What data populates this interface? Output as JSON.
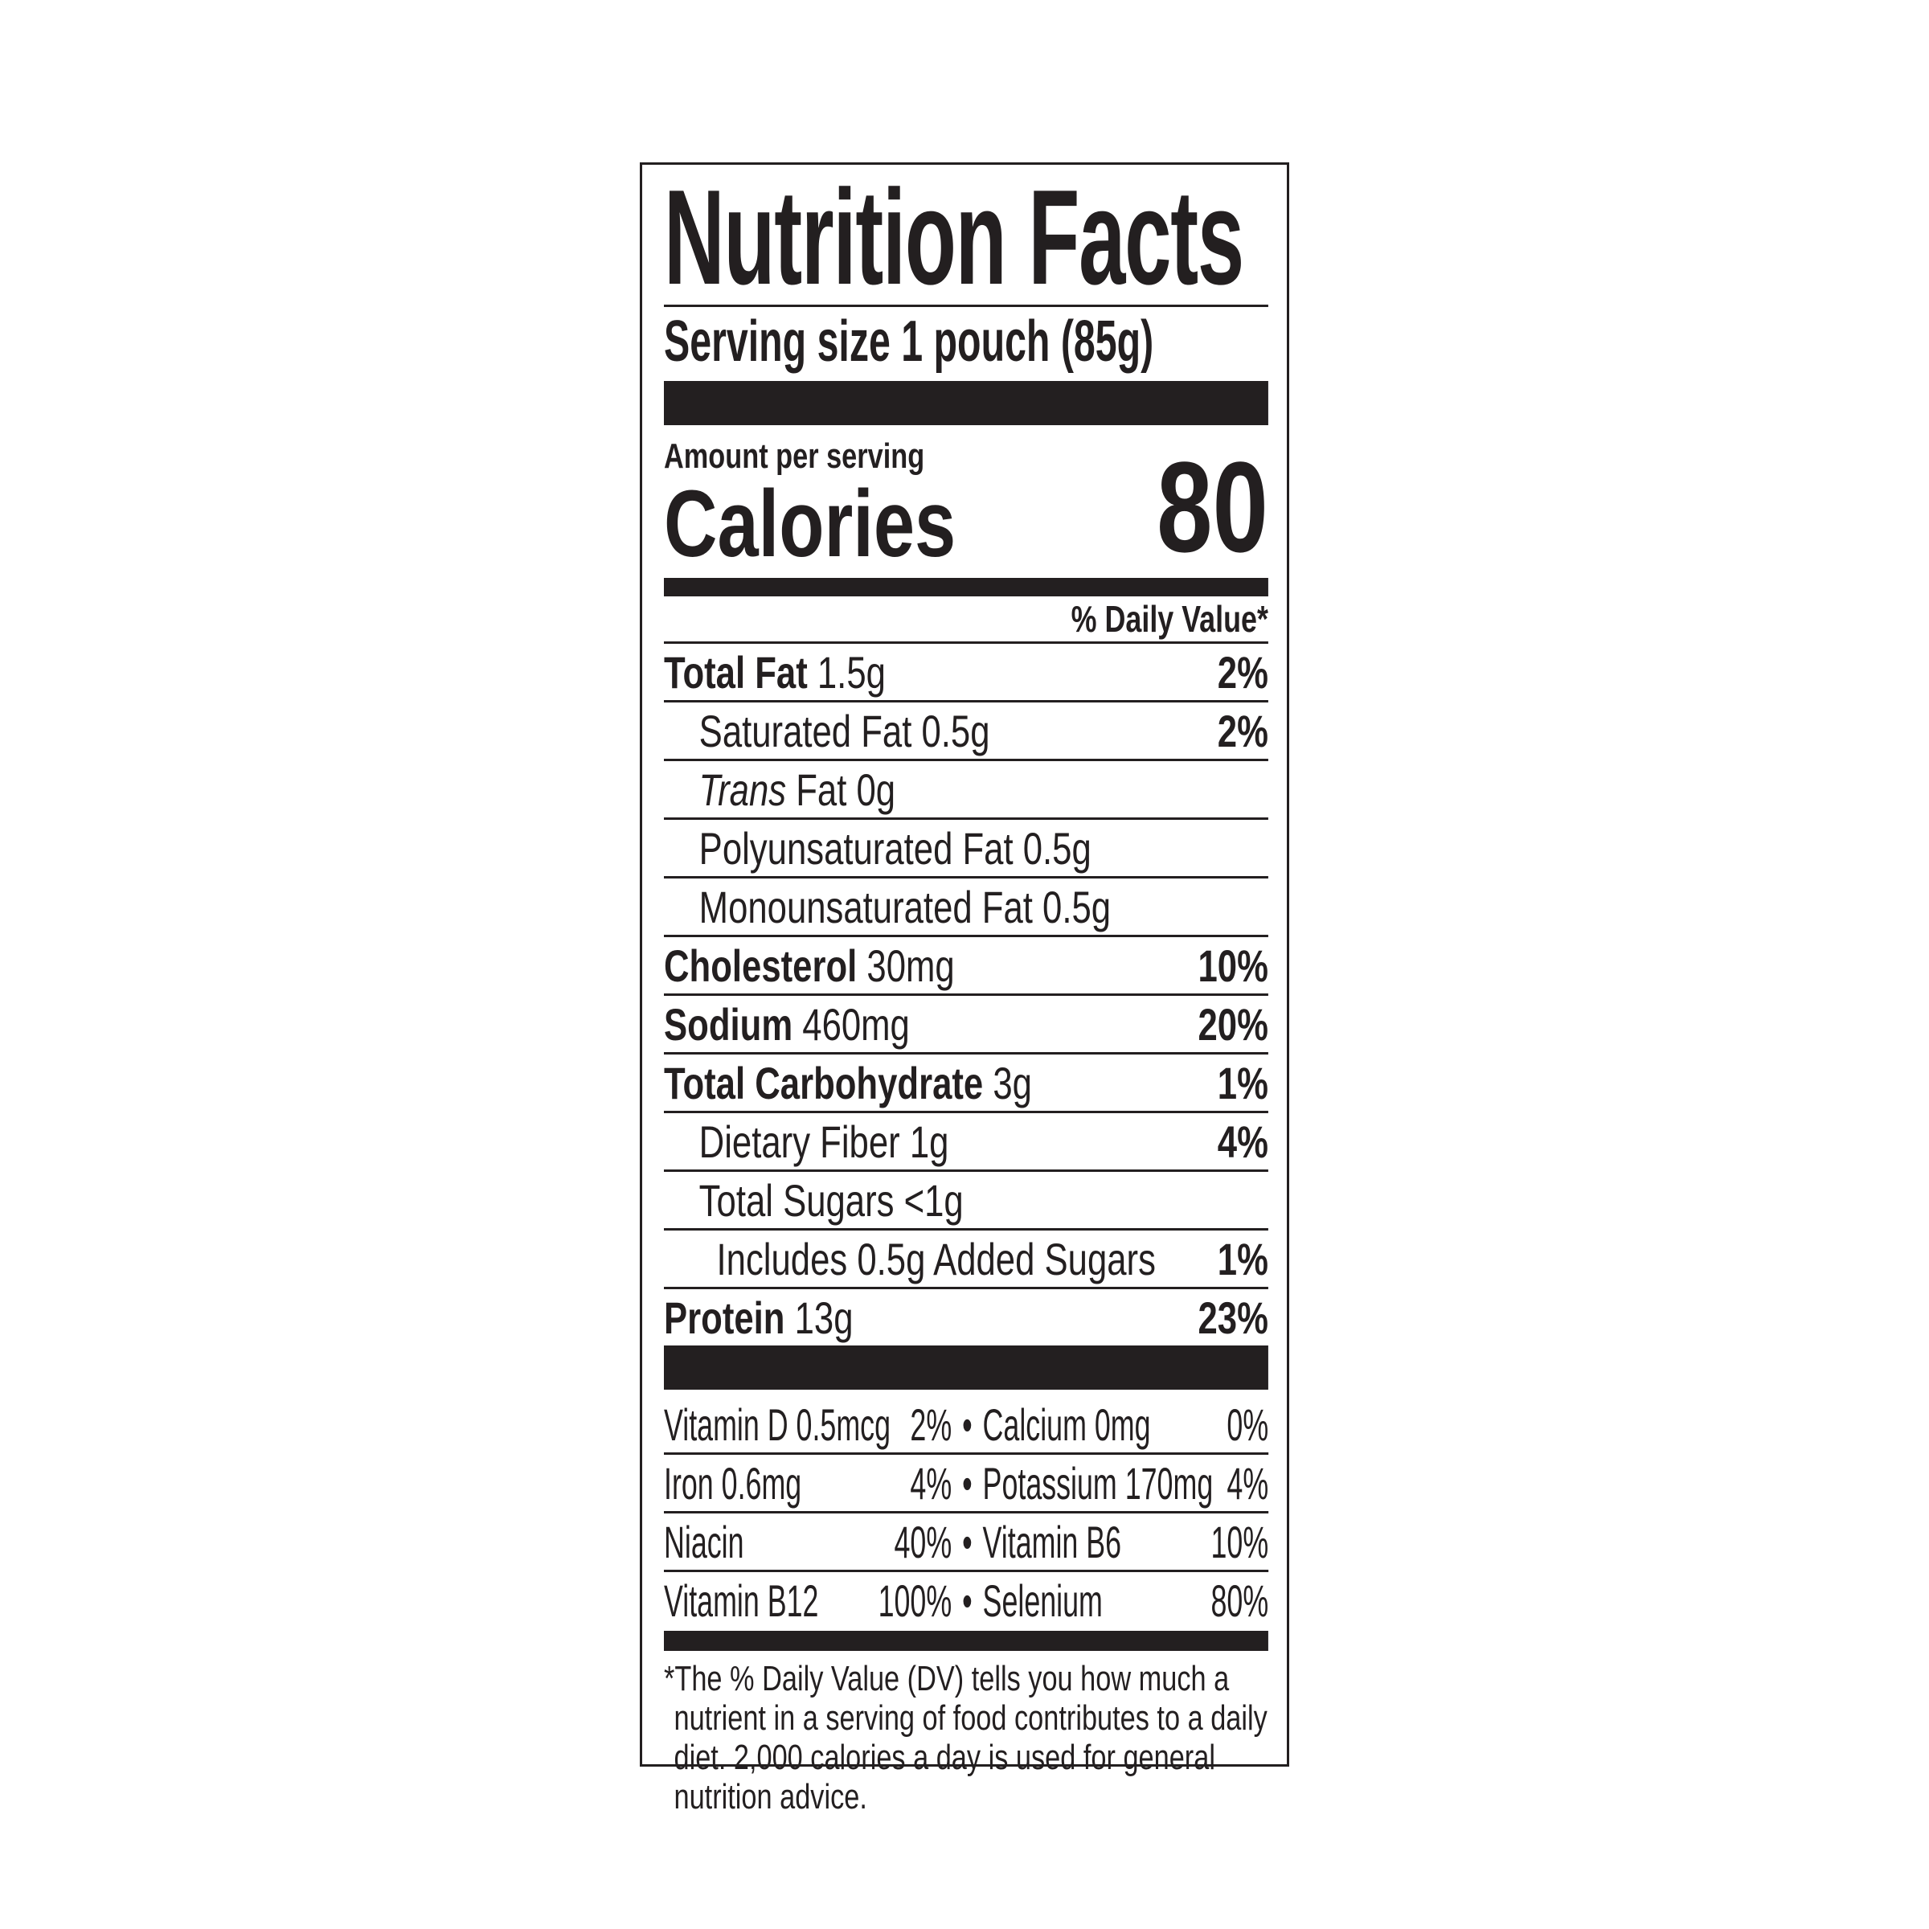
{
  "title": "Nutrition Facts",
  "serving_size": "Serving size 1 pouch (85g)",
  "amount_per_serving": "Amount per serving",
  "calories_label": "Calories",
  "calories_value": "80",
  "daily_value_header": "% Daily Value*",
  "nutrients": [
    {
      "name": "Total Fat",
      "amount": "1.5g",
      "dv": "2%"
    },
    {
      "name": "Saturated Fat",
      "amount": "0.5g",
      "dv": "2%"
    },
    {
      "name": "Trans",
      "name_rest": "Fat 0g",
      "dv": ""
    },
    {
      "name": "Polyunsaturated Fat 0.5g",
      "dv": ""
    },
    {
      "name": "Monounsaturated Fat 0.5g",
      "dv": ""
    },
    {
      "name": "Cholesterol",
      "amount": "30mg",
      "dv": "10%"
    },
    {
      "name": "Sodium",
      "amount": "460mg",
      "dv": "20%"
    },
    {
      "name": "Total Carbohydrate",
      "amount": "3g",
      "dv": "1%"
    },
    {
      "name": "Dietary Fiber 1g",
      "dv": "4%"
    },
    {
      "name": "Total Sugars <1g",
      "dv": ""
    },
    {
      "name": "Includes 0.5g Added Sugars",
      "dv": "1%"
    },
    {
      "name": "Protein",
      "amount": "13g",
      "dv": "23%"
    }
  ],
  "vitamins": [
    {
      "left": "Vitamin D 0.5mcg",
      "left_dv": "2%",
      "right": "Calcium 0mg",
      "right_dv": "0%"
    },
    {
      "left": "Iron 0.6mg",
      "left_dv": "4%",
      "right": "Potassium 170mg",
      "right_dv": "4%"
    },
    {
      "left": "Niacin",
      "left_dv": "40%",
      "right": "Vitamin B6",
      "right_dv": "10%"
    },
    {
      "left": "Vitamin B12",
      "left_dv": "100%",
      "right": "Selenium",
      "right_dv": "80%"
    }
  ],
  "bullet": "•",
  "footnote": "*The % Daily Value (DV) tells you how much a nutrient in a serving of food contributes to a daily diet. 2,000 calories a day is used for general nutrition advice."
}
